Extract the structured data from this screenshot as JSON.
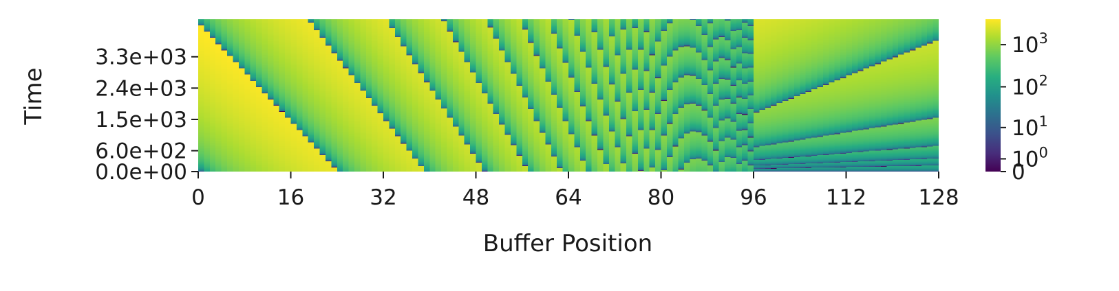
{
  "chart_data": {
    "type": "heatmap",
    "xlabel": "Buffer Position",
    "ylabel": "Time",
    "x_ticks": [
      0,
      16,
      32,
      48,
      64,
      80,
      96,
      112,
      128
    ],
    "x_tick_labels": [
      "0",
      "16",
      "32",
      "48",
      "64",
      "80",
      "96",
      "112",
      "128"
    ],
    "xlim": [
      0,
      128
    ],
    "y_ticks": [
      0,
      600,
      1500,
      2400,
      3300
    ],
    "y_tick_labels": [
      "0.0e+00",
      "6.0e+02",
      "1.5e+03",
      "2.4e+03",
      "3.3e+03"
    ],
    "ylim": [
      0,
      4380
    ],
    "colorbar": {
      "scale": "log",
      "colormap": "viridis",
      "range": [
        0,
        4000
      ],
      "ticks": [
        0,
        1,
        10,
        100,
        1000
      ],
      "tick_labels": [
        "0",
        "10^0",
        "10^1",
        "10^2",
        "10^3"
      ]
    },
    "description": {
      "values": "time elapsed since each buffer position was last reset; value ~0 at reset events",
      "region_a": "positions 0-96: reset events per position at increasing frequency with position",
      "region_b": "positions 96-128: reset events along diagonal bands whose slope grows with time"
    }
  }
}
